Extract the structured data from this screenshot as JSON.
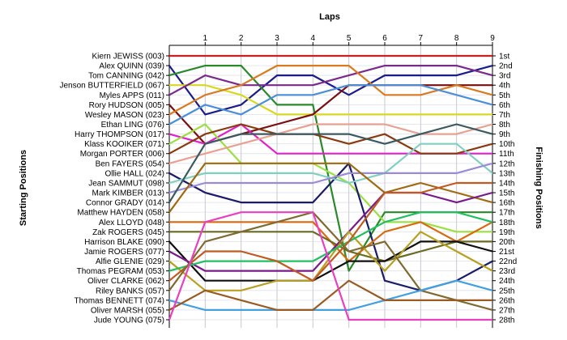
{
  "chart_data": {
    "type": "line",
    "title": "",
    "xlabel": "Laps",
    "ylabel_left": "Starting Positions",
    "ylabel_right": "Finishing Positions",
    "x": [
      0,
      1,
      2,
      3,
      4,
      5,
      6,
      7,
      8,
      9
    ],
    "x_tick_labels": [
      "1",
      "2",
      "3",
      "4",
      "5",
      "6",
      "7",
      "8",
      "9"
    ],
    "ylim": [
      1,
      28
    ],
    "y_inverted": true,
    "grid": true,
    "starting_labels": [
      "Kiern JEWISS (003)",
      "Alex QUINN (039)",
      "Tom CANNING (042)",
      "Jenson BUTTERFIELD (067)",
      "Myles APPS (011)",
      "Rory HUDSON (005)",
      "Wesley MASON (023)",
      "Ethan LING (076)",
      "Harry THOMPSON (017)",
      "Klass KOOIKER (071)",
      "Morgan PORTER (006)",
      "Ben FAYERS (054)",
      "Ollie HALL (024)",
      "Jean SAMMUT (098)",
      "Mark KIMBER (013)",
      "Connor GRADY (014)",
      "Matthew HAYDEN (058)",
      "Alex LLOYD (048)",
      "Zak ROGERS (045)",
      "Harrison BLAKE (090)",
      "Jamie ROGERS (077)",
      "Alfie GLENIE (029)",
      "Thomas PEGRAM (053)",
      "Oliver CLARKE (062)",
      "Riley BANKS (057)",
      "Thomas BENNETT (074)",
      "Oliver MARSH (055)",
      "Jude YOUNG (075)"
    ],
    "finishing_labels": [
      "1st",
      "2nd",
      "3rd",
      "4th",
      "5th",
      "6th",
      "7th",
      "8th",
      "9th",
      "10th",
      "11th",
      "12th",
      "13th",
      "14th",
      "15th",
      "16th",
      "17th",
      "18th",
      "19th",
      "20th",
      "21st",
      "22nd",
      "23rd",
      "24th",
      "25th",
      "26th",
      "27th",
      "28th"
    ],
    "series": [
      {
        "color": "#cc1f1f",
        "values": [
          1,
          1,
          1,
          1,
          1,
          1,
          1,
          1,
          1,
          1
        ]
      },
      {
        "color": "#1b1b8a",
        "values": [
          2,
          7,
          6,
          3,
          3,
          5,
          3,
          3,
          3,
          2
        ]
      },
      {
        "color": "#2a8a2a",
        "values": [
          3,
          2,
          2,
          6,
          6,
          23,
          17,
          17,
          17,
          17
        ]
      },
      {
        "color": "#d8d820",
        "values": [
          4,
          4,
          5,
          7,
          7,
          7,
          7,
          7,
          7,
          7
        ]
      },
      {
        "color": "#7a2a8a",
        "values": [
          5,
          3,
          4,
          4,
          4,
          3,
          2,
          2,
          2,
          3
        ]
      },
      {
        "color": "#7a0f0f",
        "values": [
          6,
          10,
          9,
          8,
          7,
          4,
          4,
          4,
          4,
          4
        ]
      },
      {
        "color": "#d97a20",
        "values": [
          7,
          5,
          4,
          2,
          2,
          2,
          5,
          5,
          4,
          5
        ]
      },
      {
        "color": "#4a8fd8",
        "values": [
          8,
          6,
          7,
          5,
          5,
          4,
          4,
          4,
          5,
          6
        ]
      },
      {
        "color": "#e020c8",
        "values": [
          9,
          10,
          8,
          11,
          11,
          11,
          11,
          11,
          11,
          11
        ]
      },
      {
        "color": "#99e040",
        "values": [
          10,
          8,
          12,
          12,
          12,
          14,
          18,
          18,
          19,
          19
        ]
      },
      {
        "color": "#8a3a10",
        "values": [
          11,
          9,
          8,
          9,
          9,
          10,
          9,
          11,
          11,
          10
        ]
      },
      {
        "color": "#e8a090",
        "values": [
          12,
          11,
          10,
          9,
          8,
          8,
          8,
          9,
          9,
          8
        ]
      },
      {
        "color": "#1b1b6a",
        "values": [
          13,
          15,
          16,
          16,
          16,
          12,
          24,
          25,
          24,
          22
        ]
      },
      {
        "color": "#80d0c0",
        "values": [
          14,
          13,
          13,
          13,
          13,
          14,
          13,
          10,
          10,
          13
        ]
      },
      {
        "color": "#9a8ad8",
        "values": [
          15,
          14,
          14,
          14,
          14,
          13,
          13,
          13,
          13,
          12
        ]
      },
      {
        "color": "#3a5a60",
        "values": [
          16,
          10,
          9,
          9,
          9,
          9,
          10,
          9,
          8,
          9
        ]
      },
      {
        "color": "#a06a10",
        "values": [
          17,
          12,
          12,
          12,
          12,
          12,
          15,
          14,
          15,
          16
        ]
      },
      {
        "color": "#d86a10",
        "values": [
          18,
          18,
          18,
          18,
          18,
          22,
          19,
          18,
          20,
          18
        ]
      },
      {
        "color": "#6a6a20",
        "values": [
          19,
          19,
          19,
          19,
          19,
          21,
          22,
          21,
          20,
          20
        ]
      },
      {
        "color": "#101010",
        "values": [
          20,
          24,
          24,
          24,
          24,
          22,
          22,
          20,
          20,
          21
        ]
      },
      {
        "color": "#7a1a8a",
        "values": [
          21,
          23,
          23,
          23,
          23,
          19,
          15,
          15,
          16,
          15
        ]
      },
      {
        "color": "#b8a020",
        "values": [
          22,
          25,
          25,
          24,
          24,
          19,
          23,
          19,
          21,
          23
        ]
      },
      {
        "color": "#20c060",
        "values": [
          23,
          22,
          22,
          22,
          22,
          20,
          18,
          17,
          17,
          18
        ]
      },
      {
        "color": "#c05a20",
        "values": [
          24,
          21,
          21,
          22,
          24,
          20,
          15,
          15,
          14,
          14
        ]
      },
      {
        "color": "#806a30",
        "values": [
          25,
          20,
          19,
          18,
          17,
          21,
          20,
          25,
          26,
          27
        ]
      },
      {
        "color": "#40a0e0",
        "values": [
          26,
          27,
          27,
          27,
          27,
          27,
          26,
          25,
          24,
          25
        ]
      },
      {
        "color": "#9a5a20",
        "values": [
          27,
          25,
          26,
          27,
          27,
          24,
          26,
          26,
          26,
          26
        ]
      },
      {
        "color": "#e840c0",
        "values": [
          28,
          18,
          17,
          17,
          17,
          28,
          28,
          28,
          28,
          28
        ]
      }
    ]
  }
}
